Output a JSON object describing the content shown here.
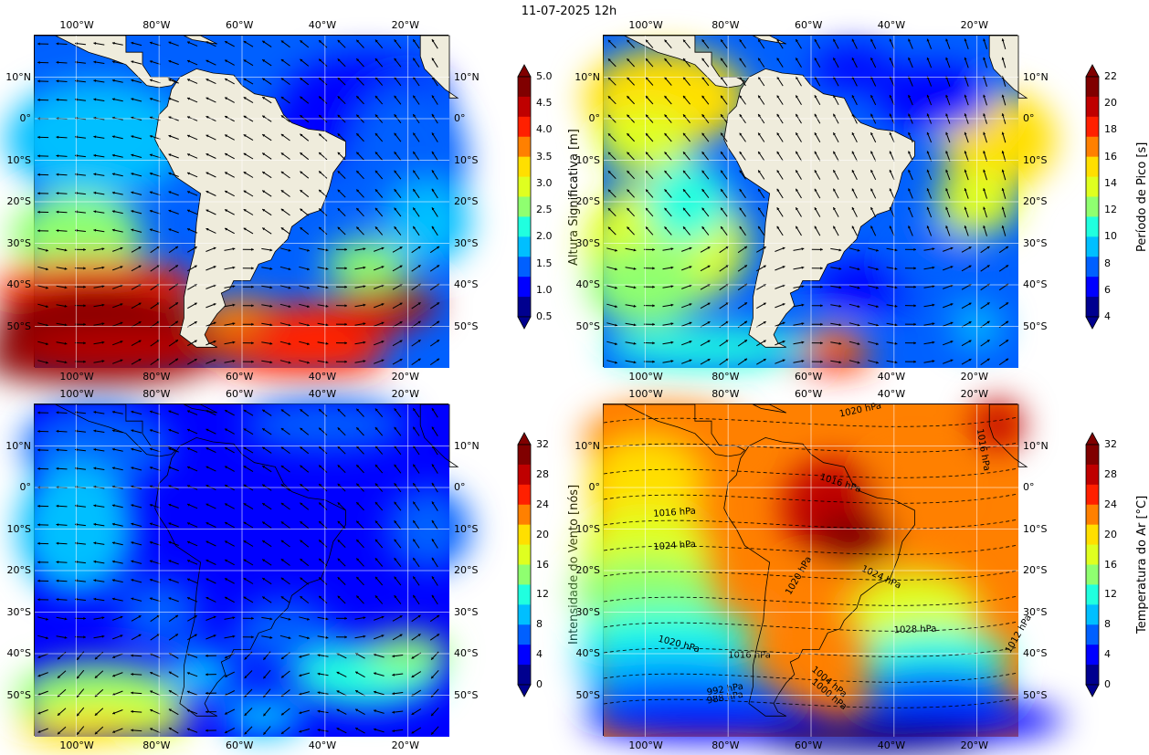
{
  "title": "11-07-2025 12h",
  "lon_ticks": [
    "100°W",
    "80°W",
    "60°W",
    "40°W",
    "20°W"
  ],
  "lat_ticks": [
    "10°N",
    "0°",
    "10°S",
    "20°S",
    "30°S",
    "40°S",
    "50°S"
  ],
  "panels": [
    {
      "id": "wave-height",
      "colorbar": {
        "label": "Altura Significativa [m]",
        "ticks": [
          "0.5",
          "1.0",
          "1.5",
          "2.0",
          "2.5",
          "3.0",
          "3.5",
          "4.0",
          "4.5",
          "5.0"
        ],
        "min": 0.5,
        "max": 5.0
      }
    },
    {
      "id": "peak-period",
      "colorbar": {
        "label": "Período de Pico [s]",
        "ticks": [
          "4",
          "6",
          "8",
          "10",
          "12",
          "14",
          "16",
          "18",
          "20",
          "22"
        ],
        "min": 4,
        "max": 22
      }
    },
    {
      "id": "wind-speed",
      "colorbar": {
        "label": "Intensidade do Vento [nós]",
        "ticks": [
          "0",
          "4",
          "8",
          "12",
          "16",
          "20",
          "24",
          "28",
          "32"
        ],
        "min": 0,
        "max": 32
      }
    },
    {
      "id": "air-temperature",
      "colorbar": {
        "label": "Temperatura do Ar [°C]",
        "ticks": [
          "0",
          "4",
          "8",
          "12",
          "16",
          "20",
          "24",
          "28",
          "32"
        ],
        "min": 0,
        "max": 32
      },
      "isobar_labels": [
        "1020 hPa",
        "1016 hPa",
        "1016 hPa",
        "1016 hPa",
        "1024 hPa",
        "1024 hPa",
        "1020 hPa",
        "1020 hPa",
        "1028 hPa",
        "1016 hPa",
        "1012 hPa",
        "1004 hPa",
        "1000 hPa",
        "992 hPa",
        "988 hPa"
      ]
    }
  ],
  "colors": {
    "land": "#efecdc",
    "jet": [
      "#00008f",
      "#0000ff",
      "#0060ff",
      "#00bfff",
      "#20ffdf",
      "#8fff70",
      "#dfff20",
      "#ffdf00",
      "#ff8000",
      "#ff2000",
      "#bf0000",
      "#800000"
    ]
  }
}
